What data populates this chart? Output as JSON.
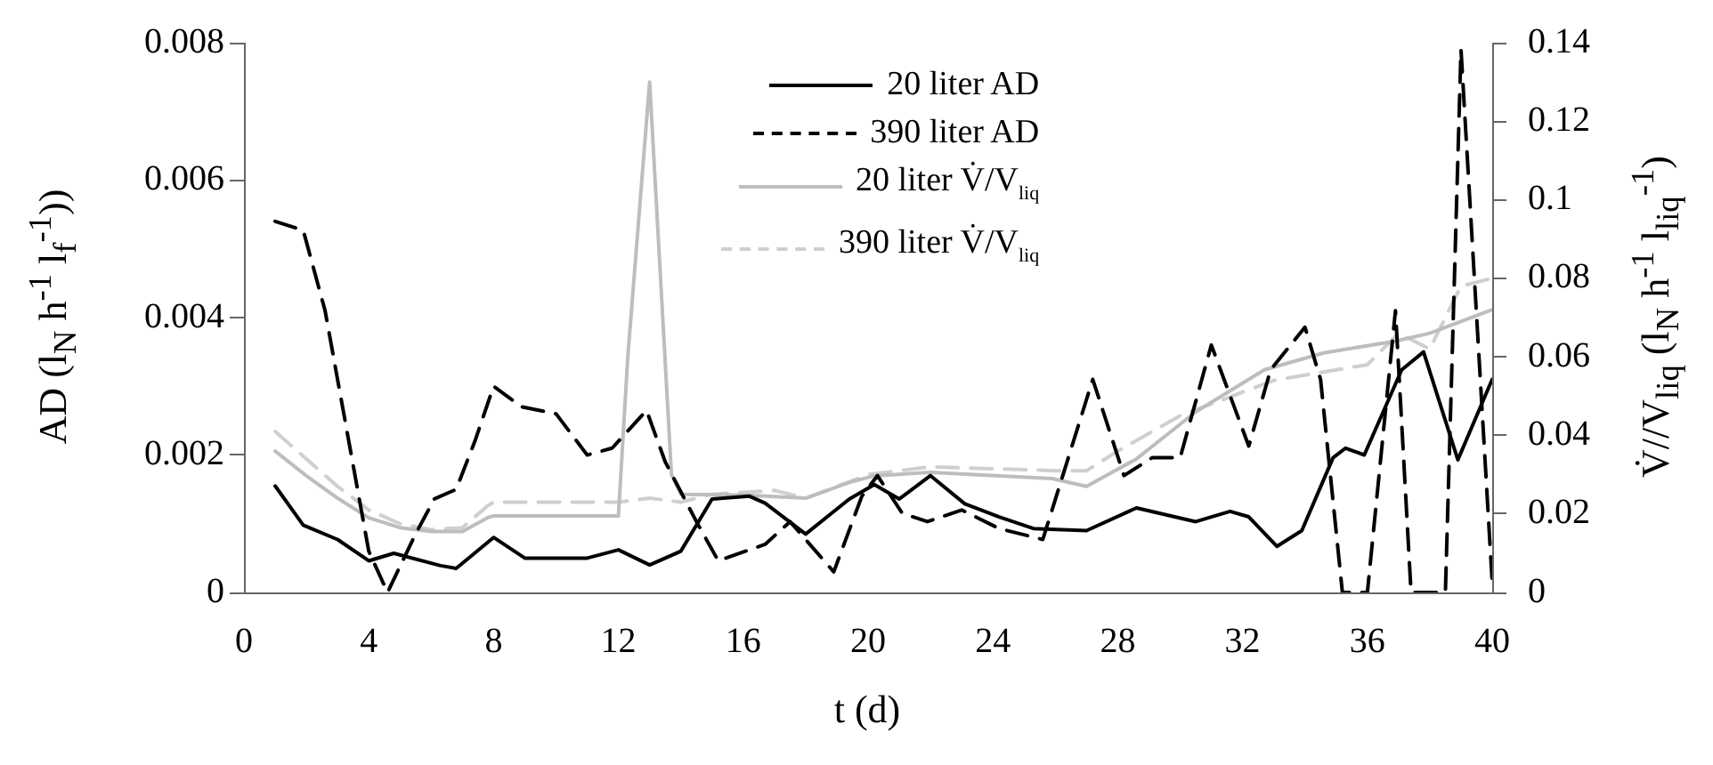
{
  "chart_data": {
    "type": "line",
    "xlabel": "t (d)",
    "ylabel": "AD (l$_{N}$ h$^{-1}$ l$_{f}$$^{-1}$))",
    "y2label": "V̇//V$_{liq}$ (l$_{N}$ h$^{-1}$ l$_{liq}$$^{-1}$)",
    "xlim": [
      0,
      40
    ],
    "xticks": [
      0,
      4,
      8,
      12,
      16,
      20,
      24,
      28,
      32,
      36,
      40
    ],
    "ylim": [
      0,
      0.008
    ],
    "yticks": [
      0,
      0.002,
      0.004,
      0.006,
      0.008
    ],
    "y2lim": [
      0,
      0.14
    ],
    "y2ticks": [
      0,
      0.02,
      0.04,
      0.06,
      0.08,
      0.1,
      0.12,
      0.14
    ],
    "legend": "top",
    "marker": "none",
    "series": [
      {
        "name": "20 liter AD",
        "color": "#000000",
        "line_style": "solid",
        "x": [
          1,
          1.9,
          3,
          4,
          4.8,
          6.3,
          6.8,
          8,
          9,
          11,
          12,
          13,
          14,
          15,
          16.2,
          16.7,
          18,
          19.4,
          20.2,
          21,
          22,
          23.1,
          24.2,
          25.3,
          27,
          28.6,
          30.5,
          31.6,
          32.2,
          33.1,
          33.9,
          34.9,
          35.3,
          35.9,
          37.1,
          37.8,
          38.9,
          40
        ],
        "values": [
          0.00155,
          0.00098,
          0.00077,
          0.00046,
          0.00057,
          0.00039,
          0.00035,
          0.0008,
          0.0005,
          0.0005,
          0.00062,
          0.0004,
          0.0006,
          0.00136,
          0.0014,
          0.0013,
          0.00085,
          0.00136,
          0.00157,
          0.00136,
          0.0017,
          0.00129,
          0.0011,
          0.00093,
          0.0009,
          0.00123,
          0.00103,
          0.00118,
          0.0011,
          0.00067,
          0.0009,
          0.00196,
          0.0021,
          0.002,
          0.00324,
          0.0035,
          0.00193,
          0.0031
        ]
      },
      {
        "name": "390 liter AD",
        "color": "#000000",
        "line_style": "dashed",
        "x": [
          1,
          1.9,
          2.6,
          3,
          4,
          4.6,
          5.5,
          6.1,
          6.8,
          7.4,
          8,
          8.9,
          10,
          11,
          11.8,
          12.9,
          13.5,
          14.5,
          15.2,
          16.7,
          17.5,
          18.9,
          19.8,
          20.3,
          21.1,
          21.9,
          23,
          24.2,
          25.6,
          27.2,
          28.2,
          29.1,
          30,
          31,
          32.2,
          32.9,
          34,
          34.5,
          35.2,
          36,
          36.9,
          37.4,
          38.5,
          39,
          40
        ],
        "values": [
          0.0054,
          0.00527,
          0.0041,
          0.0031,
          0.0006,
          0,
          0.00085,
          0.00136,
          0.0015,
          0.0022,
          0.003,
          0.0027,
          0.0026,
          0.002,
          0.0021,
          0.00265,
          0.0019,
          0.00103,
          0.00046,
          0.0007,
          0.00103,
          0.0003,
          0.0014,
          0.0017,
          0.00115,
          0.00103,
          0.0012,
          0.00093,
          0.00077,
          0.0031,
          0.0017,
          0.00196,
          0.00196,
          0.0036,
          0.00213,
          0.00324,
          0.00386,
          0.0031,
          0,
          0,
          0.0041,
          0,
          0,
          0.0079,
          0.00015
        ]
      },
      {
        "name": "20 liter V̇/V$_{liq}$",
        "color": "#bdbdbd",
        "line_style": "solid",
        "axis": "y2",
        "x": [
          1,
          2,
          3,
          4,
          5,
          6,
          7,
          7.8,
          8,
          12,
          12.3,
          13,
          13.7,
          14,
          16,
          18,
          19.4,
          20.2,
          22,
          25.9,
          27,
          28.6,
          30.5,
          32.7,
          34.6,
          36.9,
          38,
          40
        ],
        "values": [
          0.036,
          0.0297,
          0.024,
          0.019,
          0.0165,
          0.0155,
          0.0155,
          0.019,
          0.0195,
          0.0195,
          0.06,
          0.13,
          0.03,
          0.025,
          0.0248,
          0.024,
          0.028,
          0.0297,
          0.0306,
          0.029,
          0.027,
          0.034,
          0.046,
          0.0567,
          0.061,
          0.064,
          0.066,
          0.072
        ]
      },
      {
        "name": "390 liter V̇/V$_{liq}$",
        "color": "#cfcfcf",
        "line_style": "dashed",
        "axis": "y2",
        "x": [
          1,
          2,
          3,
          4,
          5,
          6,
          7,
          7.8,
          8,
          12,
          13,
          14,
          15,
          17,
          18,
          19,
          20,
          22,
          26,
          27,
          28,
          30,
          32,
          33,
          36,
          37,
          38,
          39,
          40
        ],
        "values": [
          0.041,
          0.034,
          0.027,
          0.021,
          0.0175,
          0.016,
          0.0165,
          0.022,
          0.023,
          0.023,
          0.024,
          0.023,
          0.025,
          0.026,
          0.024,
          0.027,
          0.03,
          0.032,
          0.031,
          0.031,
          0.036,
          0.045,
          0.051,
          0.054,
          0.058,
          0.066,
          0.062,
          0.078,
          0.08
        ]
      }
    ]
  }
}
